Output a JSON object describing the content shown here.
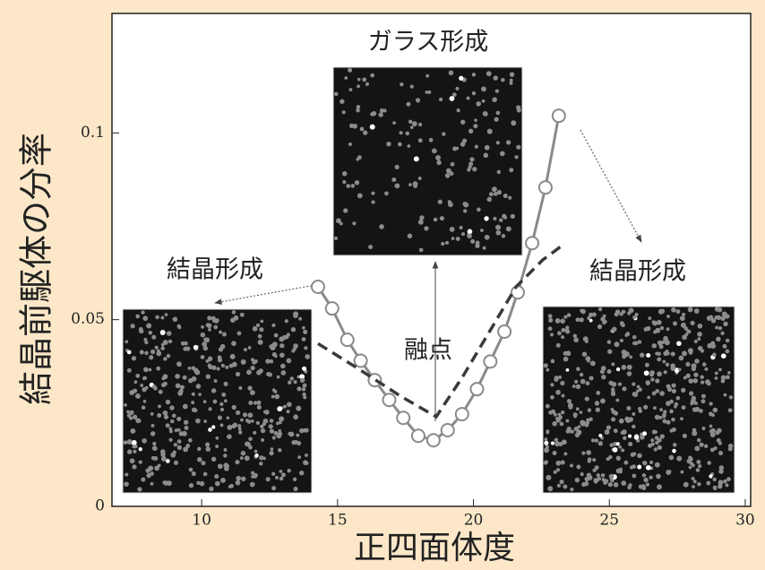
{
  "chart_data": {
    "type": "line",
    "x_label": "正四面体度",
    "y_label": "結晶前駆体の分率",
    "xlim": [
      6.7,
      30.2
    ],
    "ylim": [
      0,
      0.132
    ],
    "xticks": [
      10,
      15,
      20,
      25,
      30
    ],
    "yticks": [
      0,
      0.05,
      0.1
    ],
    "series": [
      {
        "color": "#8a8a8a",
        "marker": "circle",
        "style": "solid",
        "x": [
          14.28,
          14.8,
          15.36,
          15.85,
          16.37,
          16.9,
          17.42,
          17.97,
          18.53,
          19.05,
          19.58,
          20.13,
          20.62,
          21.14,
          21.63,
          22.16,
          22.65,
          23.14
        ],
        "values": [
          0.0588,
          0.053,
          0.0446,
          0.039,
          0.0338,
          0.0285,
          0.0237,
          0.0189,
          0.0177,
          0.0204,
          0.0247,
          0.0314,
          0.0388,
          0.0468,
          0.0573,
          0.0705,
          0.0854,
          0.1046
        ]
      },
      {
        "color": "#3a3a3a",
        "marker": "none",
        "style": "dashed",
        "x": [
          14.28,
          15.69,
          17.32,
          18.63,
          19.61,
          20.59,
          21.57,
          22.55,
          23.2
        ],
        "values": [
          0.0436,
          0.0372,
          0.0295,
          0.024,
          0.0348,
          0.0468,
          0.0588,
          0.066,
          0.0695
        ]
      }
    ],
    "annotations": {
      "glass": "ガラス形成",
      "crystal_left": "結晶形成",
      "crystal_right": "結晶形成",
      "melting": "融点"
    }
  }
}
